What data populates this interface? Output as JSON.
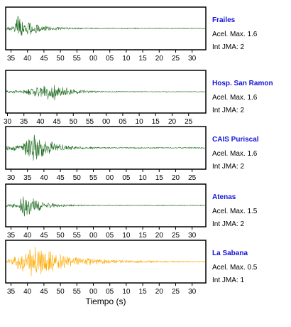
{
  "chart_data": {
    "type": "line",
    "xlabel": "Tiempo (s)",
    "panels": [
      {
        "station": "Frailes",
        "color": "#1e6b1e",
        "acel_label": "Acel. Max. 1.6",
        "jma_label": "Int JMA: 2",
        "acel_max": 1.6,
        "int_jma": 2,
        "x_ticks": [
          "35",
          "40",
          "45",
          "50",
          "55",
          "00",
          "05",
          "10",
          "15",
          "20",
          "25",
          "30"
        ],
        "onset_s": 36,
        "peak_s": 37,
        "amplitude": 0.75
      },
      {
        "station": "Hosp. San Ramon",
        "color": "#1e6b1e",
        "acel_label": "Acel. Max. 1.6",
        "jma_label": "Int JMA: 2",
        "acel_max": 1.6,
        "int_jma": 2,
        "x_ticks": [
          "30",
          "35",
          "40",
          "45",
          "50",
          "55",
          "00",
          "05",
          "10",
          "15",
          "20",
          "25"
        ],
        "onset_s": 34,
        "peak_s": 44,
        "amplitude": 0.5
      },
      {
        "station": "CAIS Puriscal",
        "color": "#1e6b1e",
        "acel_label": "Acel. Max. 1.6",
        "jma_label": "Int JMA: 2",
        "acel_max": 1.6,
        "int_jma": 2,
        "x_ticks": [
          "30",
          "35",
          "40",
          "45",
          "50",
          "55",
          "00",
          "05",
          "10",
          "15",
          "20",
          "25"
        ],
        "onset_s": 33,
        "peak_s": 37,
        "amplitude": 0.95
      },
      {
        "station": "Atenas",
        "color": "#1e6b1e",
        "acel_label": "Acel. Max. 1.5",
        "jma_label": "Int JMA: 2",
        "acel_max": 1.5,
        "int_jma": 2,
        "x_ticks": [
          "35",
          "40",
          "45",
          "50",
          "55",
          "00",
          "05",
          "10",
          "15",
          "20",
          "25",
          "30"
        ],
        "onset_s": 37,
        "peak_s": 39,
        "amplitude": 0.7
      },
      {
        "station": "La Sabana",
        "color": "#ffaa00",
        "acel_label": "Acel. Max. 0.5",
        "jma_label": "Int JMA: 1",
        "acel_max": 0.5,
        "int_jma": 1,
        "x_ticks": [
          "35",
          "40",
          "45",
          "50",
          "55",
          "00",
          "05",
          "10",
          "15",
          "20",
          "25",
          "30"
        ],
        "onset_s": 35,
        "peak_s": 42,
        "amplitude": 0.95
      }
    ]
  }
}
